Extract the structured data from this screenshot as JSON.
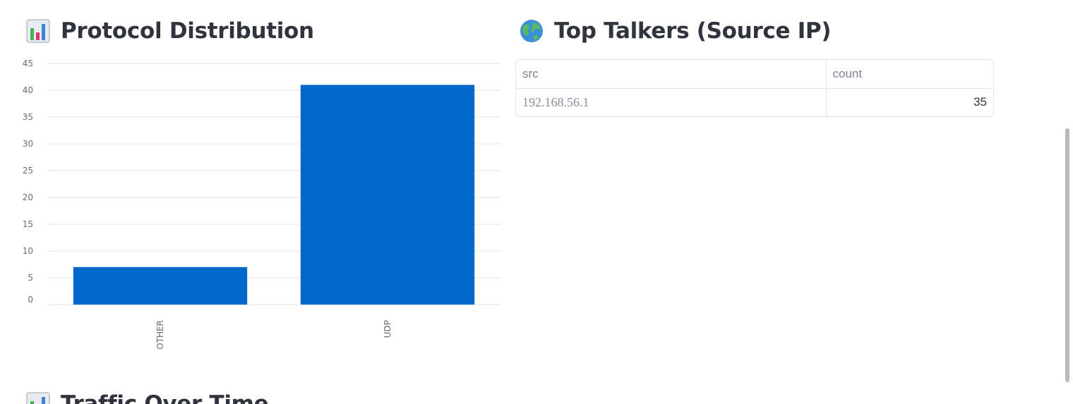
{
  "sections": {
    "protocol": {
      "title": "Protocol Distribution",
      "icon": "bar-chart-icon"
    },
    "talkers": {
      "title": "Top Talkers (Source IP)",
      "icon": "globe-icon"
    },
    "traffic": {
      "title": "Traffic Over Time",
      "icon": "bar-chart-icon"
    }
  },
  "table": {
    "columns": [
      "src",
      "count"
    ],
    "rows": [
      {
        "src": "192.168.56.1",
        "count": "35"
      }
    ]
  },
  "colors": {
    "bar": "#0068c9",
    "text": "#31333f",
    "grid": "#e6e6ea"
  },
  "chart_data": {
    "type": "bar",
    "categories": [
      "OTHER",
      "UDP"
    ],
    "values": [
      7,
      41
    ],
    "title": "",
    "xlabel": "",
    "ylabel": "",
    "ylim": [
      0,
      45
    ],
    "yticks": [
      0,
      5,
      10,
      15,
      20,
      25,
      30,
      35,
      40,
      45
    ],
    "grid": true
  }
}
